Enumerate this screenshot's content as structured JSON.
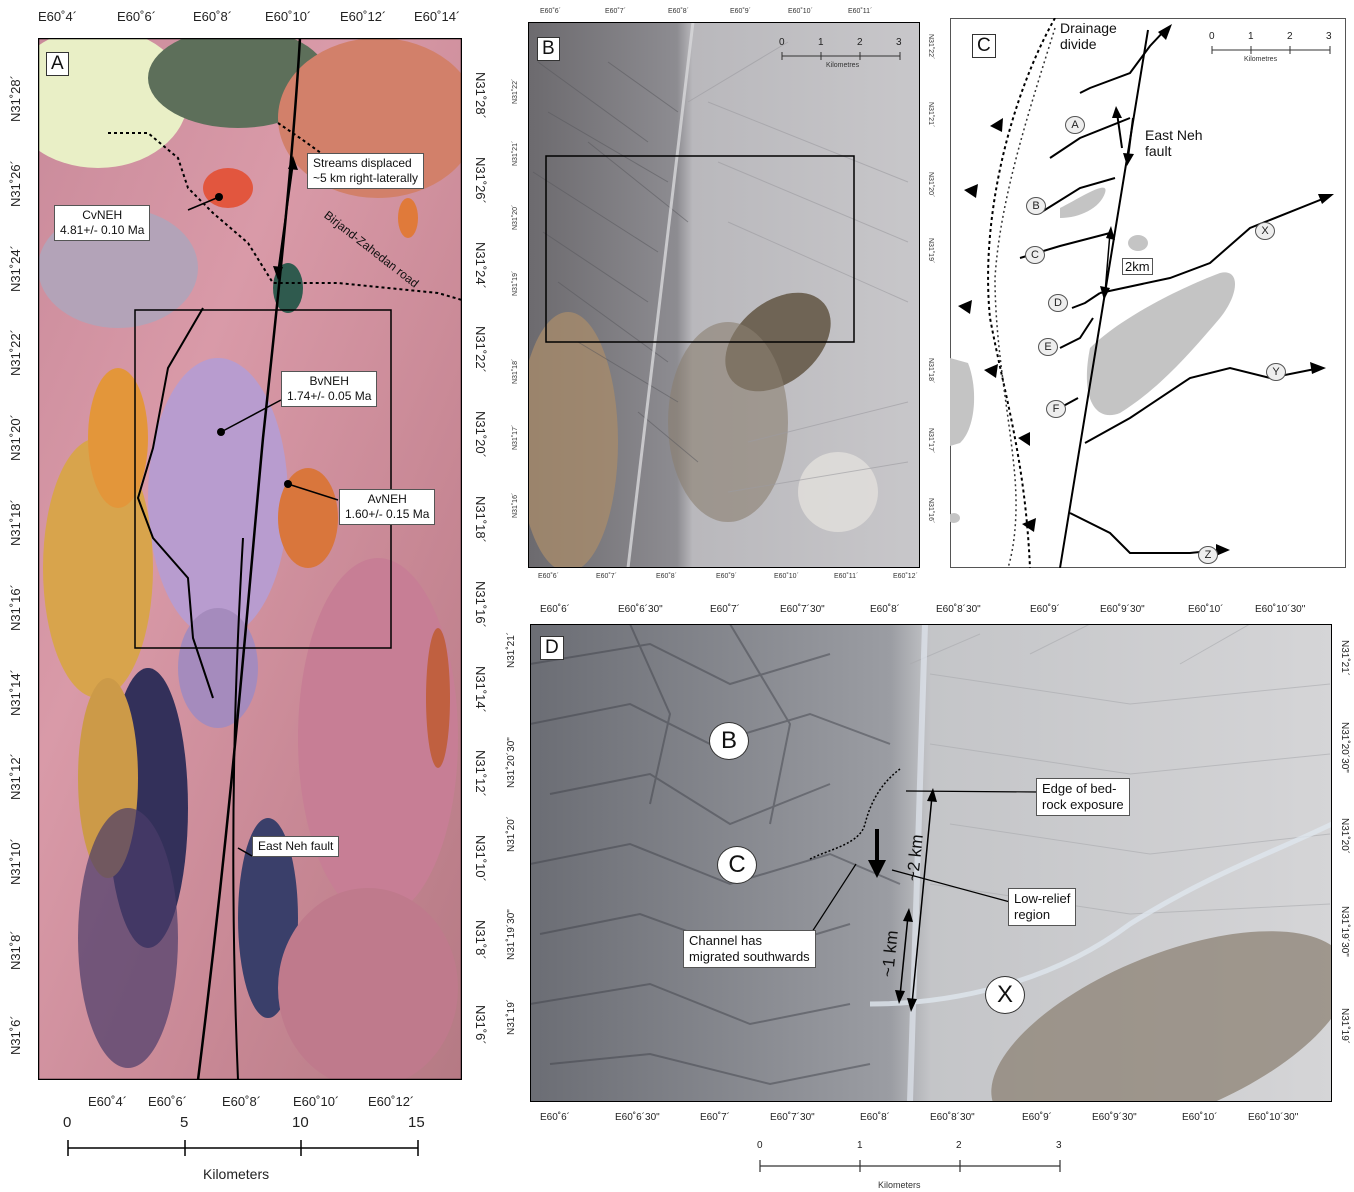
{
  "panelA": {
    "label": "A",
    "top_ticks": [
      "E60˚4´",
      "E60˚6´",
      "E60˚8´",
      "E60˚10´",
      "E60˚12´",
      "E60˚14´"
    ],
    "bottom_ticks": [
      "E60˚4´",
      "E60˚6´",
      "E60˚8´",
      "E60˚10´",
      "E60˚12´"
    ],
    "left_ticks": [
      "N31˚28´",
      "N31˚26´",
      "N31˚24´",
      "N31˚22´",
      "N31˚20´",
      "N31˚18´",
      "N31˚16´",
      "N31˚14´",
      "N31˚12´",
      "N31˚10´",
      "N31˚8´",
      "N31˚6´"
    ],
    "right_ticks": [
      "N31˚28´",
      "N31˚26´",
      "N31˚24´",
      "N31˚22´",
      "N31˚20´",
      "N31˚18´",
      "N31˚16´",
      "N31˚14´",
      "N31˚12´",
      "N31˚10´",
      "N31˚8´",
      "N31˚6´"
    ],
    "streams_line1": "Streams displaced",
    "streams_line2": "~5 km right-laterally",
    "road": "Birjand-Zahedan road",
    "cv_name": "CvNEH",
    "cv_age": "4.81+/- 0.10 Ma",
    "bv_name": "BvNEH",
    "bv_age": "1.74+/- 0.05 Ma",
    "av_name": "AvNEH",
    "av_age": "1.60+/- 0.15 Ma",
    "fault": "East Neh fault",
    "scale_ticks": [
      "0",
      "5",
      "10",
      "15"
    ],
    "scale_unit": "Kilometers"
  },
  "panelB": {
    "label": "B",
    "top_ticks": [
      "E60˚6´",
      "E60˚7´",
      "E60˚8´",
      "E60˚9´",
      "E60˚10´",
      "E60˚11´"
    ],
    "bottom_ticks": [
      "E60˚6´",
      "E60˚7´",
      "E60˚8´",
      "E60˚9´",
      "E60˚10´",
      "E60˚11´",
      "E60˚12´"
    ],
    "left_ticks": [
      "N31˚22´",
      "N31˚21´",
      "N31˚20´",
      "N31˚19´",
      "N31˚18´",
      "N31˚17´",
      "N31˚16´"
    ],
    "right_ticks": [
      "N31˚22´",
      "N31˚21´",
      "N31˚20´",
      "N31˚19´",
      "N31˚18´",
      "N31˚17´",
      "N31˚16´"
    ],
    "scale_ticks": [
      "0",
      "1",
      "2",
      "3"
    ],
    "scale_unit": "Kilometres"
  },
  "panelC": {
    "label": "C",
    "divide_line1": "Drainage",
    "divide_line2": "divide",
    "fault_line1": "East Neh",
    "fault_line2": "fault",
    "offset": "2km",
    "streams": [
      "A",
      "B",
      "C",
      "D",
      "E",
      "F",
      "X",
      "Y",
      "Z"
    ],
    "scale_ticks": [
      "0",
      "1",
      "2",
      "3"
    ],
    "scale_unit": "Kilometres"
  },
  "panelD": {
    "label": "D",
    "top_ticks": [
      "E60˚6´",
      "E60˚6´30\"",
      "E60˚7´",
      "E60˚7´30\"",
      "E60˚8´",
      "E60˚8´30\"",
      "E60˚9´",
      "E60˚9´30\"",
      "E60˚10´",
      "E60˚10´30\""
    ],
    "bottom_ticks": [
      "E60˚6´",
      "E60˚6´30\"",
      "E60˚7´",
      "E60˚7´30\"",
      "E60˚8´",
      "E60˚8´30\"",
      "E60˚9´",
      "E60˚9´30\"",
      "E60˚10´",
      "E60˚10´30\""
    ],
    "left_ticks": [
      "N31˚21´",
      "N31˚20´30\"",
      "N31˚20´",
      "N31˚19´30\"",
      "N31˚19´"
    ],
    "right_ticks": [
      "N31˚21´",
      "N31˚20´30\"",
      "N31˚20´",
      "N31˚19´30\"",
      "N31˚19´"
    ],
    "mark_b": "B",
    "mark_c": "C",
    "mark_x": "X",
    "edge_line1": "Edge of bed-",
    "edge_line2": "rock exposure",
    "low_line1": "Low-relief",
    "low_line2": "region",
    "channel_line1": "Channel has",
    "channel_line2": "migrated southwards",
    "dist_2km": "~2 km",
    "dist_1km": "~1 km",
    "scale_ticks": [
      "0",
      "1",
      "2",
      "3"
    ],
    "scale_unit": "Kilometers"
  }
}
